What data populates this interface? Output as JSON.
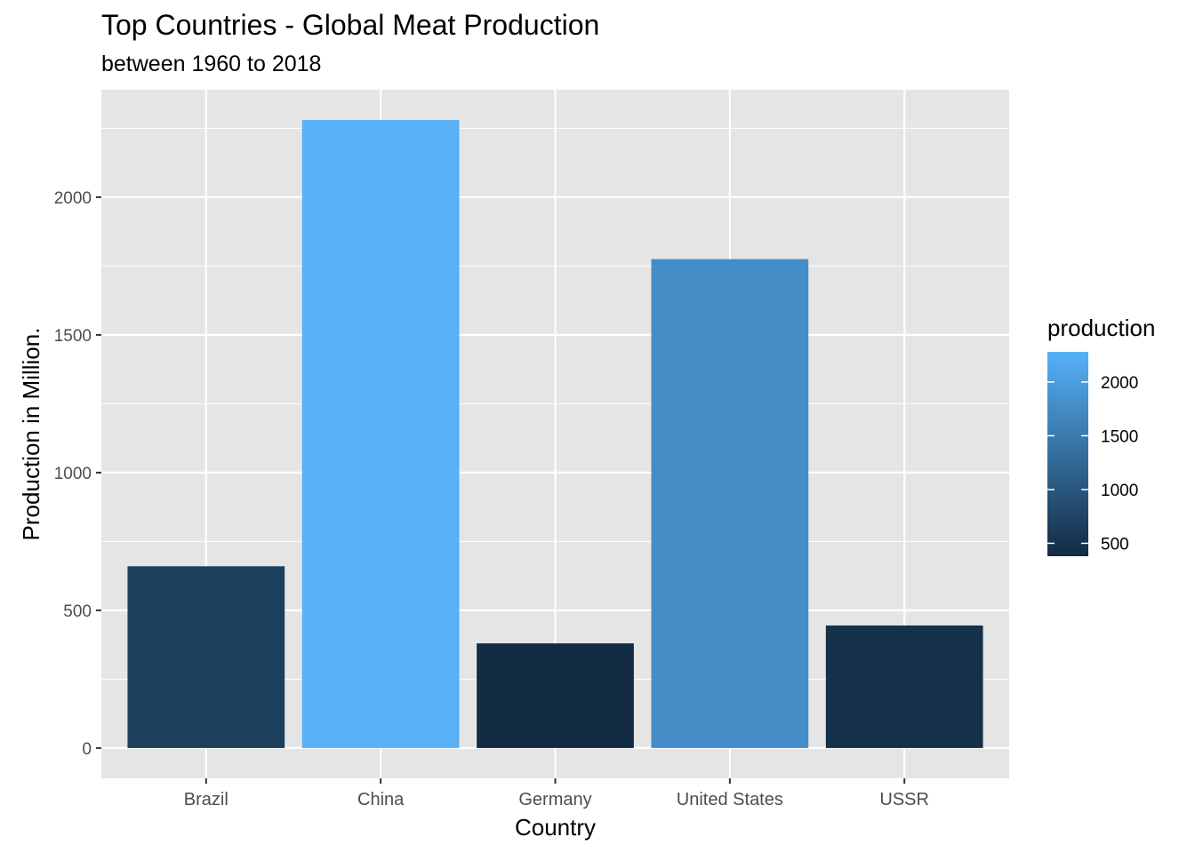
{
  "chart_data": {
    "type": "bar",
    "title": "Top Countries - Global Meat Production",
    "subtitle": "between 1960 to 2018",
    "xlabel": "Country",
    "ylabel": "Production in Million.",
    "categories": [
      "Brazil",
      "China",
      "Germany",
      "United States",
      "USSR"
    ],
    "values": [
      660,
      2280,
      380,
      1775,
      445
    ],
    "ylim": [
      -110,
      2390
    ],
    "yticks": [
      0,
      500,
      1000,
      1500,
      2000
    ],
    "grid": true,
    "legend": {
      "title": "production",
      "position": "right",
      "range": [
        380,
        2280
      ],
      "ticks": [
        500,
        1000,
        1500,
        2000
      ],
      "color_low": "#132B43",
      "color_high": "#56B1F7"
    }
  },
  "colors": {
    "panel": "#e5e5e5",
    "grid": "#ffffff"
  }
}
